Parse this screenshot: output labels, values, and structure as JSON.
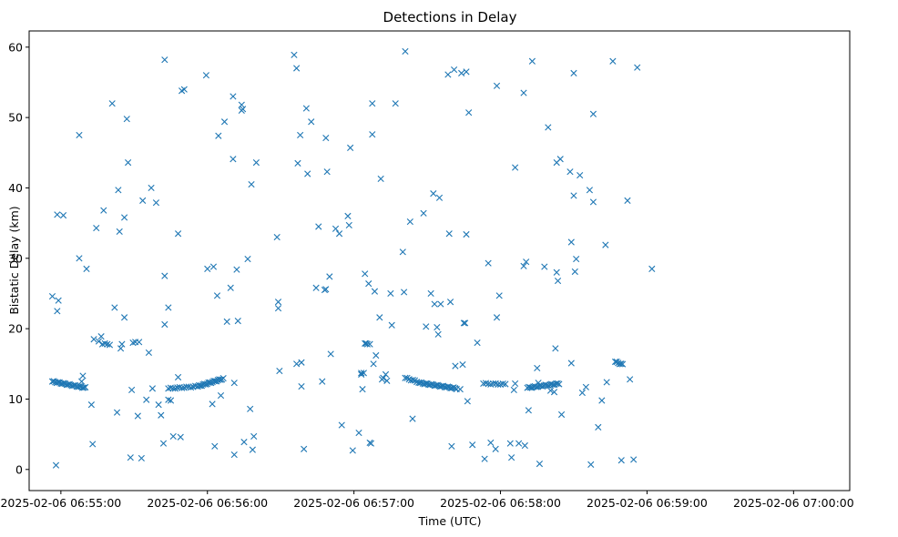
{
  "chart_data": {
    "type": "scatter",
    "title": "Detections in Delay",
    "xlabel": "Time (UTC)",
    "ylabel": "Bistatic Delay (km)",
    "marker": "x",
    "color": "#1f77b4",
    "grid": false,
    "x_unit": "seconds after 2025-02-06 06:54:00",
    "xlim": [
      47,
      383
    ],
    "ylim": [
      -3,
      62.3
    ],
    "x_ticks": [
      {
        "value": 60,
        "label": "2025-02-06 06:55:00"
      },
      {
        "value": 120,
        "label": "2025-02-06 06:56:00"
      },
      {
        "value": 180,
        "label": "2025-02-06 06:57:00"
      },
      {
        "value": 240,
        "label": "2025-02-06 06:58:00"
      },
      {
        "value": 300,
        "label": "2025-02-06 06:59:00"
      },
      {
        "value": 360,
        "label": "2025-02-06 07:00:00"
      }
    ],
    "y_ticks": [
      {
        "value": 0,
        "label": "0"
      },
      {
        "value": 10,
        "label": "10"
      },
      {
        "value": 20,
        "label": "20"
      },
      {
        "value": 30,
        "label": "30"
      },
      {
        "value": 40,
        "label": "40"
      },
      {
        "value": 50,
        "label": "50"
      },
      {
        "value": 60,
        "label": "60"
      }
    ],
    "tracks": [
      {
        "x_start": 56.5,
        "x_end": 70.0,
        "y_start": 12.5,
        "y_end": 11.6,
        "count": 24
      },
      {
        "x_start": 104.0,
        "x_end": 116.0,
        "y_start": 11.5,
        "y_end": 11.8,
        "count": 14
      },
      {
        "x_start": 116.0,
        "x_end": 126.5,
        "y_start": 11.8,
        "y_end": 12.9,
        "count": 20
      },
      {
        "x_start": 201.0,
        "x_end": 206.5,
        "y_start": 13.0,
        "y_end": 12.4,
        "count": 8
      },
      {
        "x_start": 207.0,
        "x_end": 222.0,
        "y_start": 12.3,
        "y_end": 11.5,
        "count": 26
      },
      {
        "x_start": 233.0,
        "x_end": 242.0,
        "y_start": 12.2,
        "y_end": 12.1,
        "count": 10
      },
      {
        "x_start": 251.0,
        "x_end": 264.0,
        "y_start": 11.6,
        "y_end": 12.2,
        "count": 22
      },
      {
        "x_start": 287.0,
        "x_end": 290.0,
        "y_start": 15.3,
        "y_end": 14.9,
        "count": 6
      }
    ],
    "points": [
      [
        56.5,
        24.6
      ],
      [
        58.5,
        36.2
      ],
      [
        58.5,
        22.5
      ],
      [
        59.0,
        24.0
      ],
      [
        61.0,
        36.1
      ],
      [
        58.0,
        0.6
      ],
      [
        67.5,
        47.5
      ],
      [
        67.5,
        30.0
      ],
      [
        70.5,
        28.5
      ],
      [
        69.0,
        13.3
      ],
      [
        68.5,
        12.5
      ],
      [
        72.5,
        9.2
      ],
      [
        73.0,
        3.6
      ],
      [
        74.5,
        34.3
      ],
      [
        73.5,
        18.5
      ],
      [
        75.5,
        18.2
      ],
      [
        76.5,
        18.9
      ],
      [
        77.0,
        17.8
      ],
      [
        77.5,
        36.8
      ],
      [
        78.0,
        17.9
      ],
      [
        79.0,
        17.8
      ],
      [
        80.0,
        17.7
      ],
      [
        81.0,
        52.0
      ],
      [
        82.0,
        23.0
      ],
      [
        83.0,
        8.1
      ],
      [
        83.5,
        39.7
      ],
      [
        84.0,
        33.8
      ],
      [
        84.5,
        17.2
      ],
      [
        85.0,
        17.8
      ],
      [
        86.0,
        35.8
      ],
      [
        86.0,
        21.6
      ],
      [
        87.0,
        49.8
      ],
      [
        87.5,
        43.6
      ],
      [
        88.5,
        1.7
      ],
      [
        89.0,
        11.3
      ],
      [
        89.5,
        18.0
      ],
      [
        90.5,
        18.1
      ],
      [
        91.5,
        7.6
      ],
      [
        92.0,
        18.1
      ],
      [
        93.0,
        1.6
      ],
      [
        93.5,
        38.2
      ],
      [
        95.0,
        9.9
      ],
      [
        96.0,
        16.6
      ],
      [
        97.0,
        40.0
      ],
      [
        97.5,
        11.5
      ],
      [
        99.0,
        37.9
      ],
      [
        100.0,
        9.2
      ],
      [
        101.0,
        7.7
      ],
      [
        102.0,
        3.7
      ],
      [
        102.5,
        58.2
      ],
      [
        102.5,
        27.5
      ],
      [
        102.5,
        20.6
      ],
      [
        104.0,
        23.0
      ],
      [
        104.0,
        9.9
      ],
      [
        105.0,
        9.8
      ],
      [
        106.0,
        4.7
      ],
      [
        108.0,
        33.5
      ],
      [
        108.0,
        13.1
      ],
      [
        109.0,
        4.6
      ],
      [
        109.5,
        53.8
      ],
      [
        110.5,
        54.0
      ],
      [
        119.5,
        56.0
      ],
      [
        120.0,
        28.5
      ],
      [
        122.0,
        9.3
      ],
      [
        122.5,
        28.8
      ],
      [
        123.0,
        3.3
      ],
      [
        124.0,
        24.7
      ],
      [
        124.5,
        47.4
      ],
      [
        125.5,
        10.5
      ],
      [
        127.0,
        49.4
      ],
      [
        128.0,
        21.0
      ],
      [
        129.5,
        25.8
      ],
      [
        130.5,
        44.1
      ],
      [
        130.5,
        53.0
      ],
      [
        131.0,
        12.3
      ],
      [
        131.0,
        2.1
      ],
      [
        132.0,
        28.4
      ],
      [
        132.5,
        21.1
      ],
      [
        134.0,
        51.8
      ],
      [
        134.0,
        51.0
      ],
      [
        134.5,
        51.2
      ],
      [
        135.0,
        3.9
      ],
      [
        136.5,
        29.9
      ],
      [
        137.5,
        8.6
      ],
      [
        138.0,
        40.5
      ],
      [
        138.5,
        2.8
      ],
      [
        139.0,
        4.7
      ],
      [
        140.0,
        43.6
      ],
      [
        148.5,
        33.0
      ],
      [
        149.0,
        23.8
      ],
      [
        149.0,
        22.9
      ],
      [
        149.5,
        14.0
      ],
      [
        155.5,
        58.9
      ],
      [
        156.5,
        57.0
      ],
      [
        156.5,
        15.0
      ],
      [
        157.0,
        43.5
      ],
      [
        158.0,
        47.5
      ],
      [
        158.5,
        15.2
      ],
      [
        158.5,
        11.8
      ],
      [
        159.5,
        2.9
      ],
      [
        160.5,
        51.3
      ],
      [
        161.0,
        42.0
      ],
      [
        162.5,
        49.4
      ],
      [
        164.5,
        25.8
      ],
      [
        165.5,
        34.5
      ],
      [
        167.0,
        12.5
      ],
      [
        168.0,
        25.5
      ],
      [
        168.5,
        25.6
      ],
      [
        168.5,
        47.1
      ],
      [
        169.0,
        42.3
      ],
      [
        170.0,
        27.4
      ],
      [
        170.5,
        16.4
      ],
      [
        172.5,
        34.2
      ],
      [
        174.0,
        33.5
      ],
      [
        175.0,
        6.3
      ],
      [
        177.5,
        36.0
      ],
      [
        178.0,
        34.7
      ],
      [
        178.5,
        45.7
      ],
      [
        179.5,
        2.7
      ],
      [
        182.0,
        5.2
      ],
      [
        183.0,
        13.7
      ],
      [
        183.0,
        13.5
      ],
      [
        183.5,
        11.4
      ],
      [
        184.0,
        13.7
      ],
      [
        184.5,
        27.8
      ],
      [
        184.5,
        17.9
      ],
      [
        185.0,
        17.9
      ],
      [
        185.5,
        17.8
      ],
      [
        186.0,
        26.4
      ],
      [
        186.5,
        17.8
      ],
      [
        186.5,
        3.8
      ],
      [
        187.0,
        3.7
      ],
      [
        187.5,
        52.0
      ],
      [
        187.5,
        47.6
      ],
      [
        188.0,
        15.0
      ],
      [
        188.5,
        25.3
      ],
      [
        189.0,
        16.2
      ],
      [
        190.5,
        21.6
      ],
      [
        191.0,
        41.3
      ],
      [
        191.5,
        12.8
      ],
      [
        192.0,
        13.0
      ],
      [
        193.0,
        13.5
      ],
      [
        193.5,
        12.6
      ],
      [
        195.0,
        25.0
      ],
      [
        195.5,
        20.5
      ],
      [
        197.0,
        52.0
      ],
      [
        200.0,
        30.9
      ],
      [
        200.5,
        25.2
      ],
      [
        201.0,
        59.4
      ],
      [
        203.0,
        35.2
      ],
      [
        204.0,
        7.2
      ],
      [
        208.5,
        36.4
      ],
      [
        209.5,
        20.3
      ],
      [
        211.5,
        25.0
      ],
      [
        212.5,
        39.2
      ],
      [
        213.0,
        23.5
      ],
      [
        214.0,
        20.2
      ],
      [
        214.5,
        19.2
      ],
      [
        215.0,
        38.6
      ],
      [
        215.5,
        23.5
      ],
      [
        218.5,
        56.1
      ],
      [
        219.0,
        33.5
      ],
      [
        219.5,
        23.8
      ],
      [
        220.0,
        3.3
      ],
      [
        221.0,
        56.8
      ],
      [
        221.5,
        14.7
      ],
      [
        223.5,
        11.4
      ],
      [
        224.0,
        56.3
      ],
      [
        224.5,
        14.9
      ],
      [
        225.0,
        20.8
      ],
      [
        225.5,
        20.8
      ],
      [
        226.0,
        56.5
      ],
      [
        226.0,
        33.4
      ],
      [
        226.5,
        9.7
      ],
      [
        227.0,
        50.7
      ],
      [
        228.5,
        3.5
      ],
      [
        230.5,
        18.0
      ],
      [
        233.5,
        1.5
      ],
      [
        235.0,
        29.3
      ],
      [
        236.0,
        3.8
      ],
      [
        238.0,
        2.9
      ],
      [
        238.5,
        54.5
      ],
      [
        238.5,
        21.6
      ],
      [
        239.5,
        24.7
      ],
      [
        244.0,
        3.7
      ],
      [
        244.5,
        1.7
      ],
      [
        245.5,
        11.3
      ],
      [
        246.0,
        12.2
      ],
      [
        246.0,
        42.9
      ],
      [
        247.5,
        3.7
      ],
      [
        249.5,
        53.5
      ],
      [
        249.5,
        28.9
      ],
      [
        250.0,
        3.4
      ],
      [
        250.5,
        29.5
      ],
      [
        251.5,
        8.4
      ],
      [
        253.0,
        58.0
      ],
      [
        255.0,
        14.4
      ],
      [
        255.5,
        12.3
      ],
      [
        256.0,
        0.8
      ],
      [
        258.0,
        28.8
      ],
      [
        259.5,
        48.6
      ],
      [
        260.5,
        11.2
      ],
      [
        262.0,
        11.0
      ],
      [
        262.5,
        17.2
      ],
      [
        263.0,
        28.0
      ],
      [
        263.5,
        26.8
      ],
      [
        263.0,
        43.6
      ],
      [
        264.5,
        44.1
      ],
      [
        265.0,
        7.8
      ],
      [
        268.5,
        42.3
      ],
      [
        269.0,
        32.3
      ],
      [
        269.0,
        15.1
      ],
      [
        270.0,
        56.3
      ],
      [
        270.0,
        38.9
      ],
      [
        270.5,
        28.1
      ],
      [
        271.0,
        29.9
      ],
      [
        272.5,
        41.8
      ],
      [
        273.5,
        10.9
      ],
      [
        275.0,
        11.7
      ],
      [
        276.5,
        39.7
      ],
      [
        277.0,
        0.7
      ],
      [
        278.0,
        50.5
      ],
      [
        278.0,
        38.0
      ],
      [
        280.0,
        6.0
      ],
      [
        281.5,
        9.8
      ],
      [
        283.0,
        31.9
      ],
      [
        283.5,
        12.4
      ],
      [
        286.0,
        58.0
      ],
      [
        289.5,
        1.3
      ],
      [
        292.0,
        38.2
      ],
      [
        293.0,
        12.8
      ],
      [
        294.5,
        1.4
      ],
      [
        296.0,
        57.1
      ],
      [
        302.0,
        28.5
      ]
    ]
  }
}
